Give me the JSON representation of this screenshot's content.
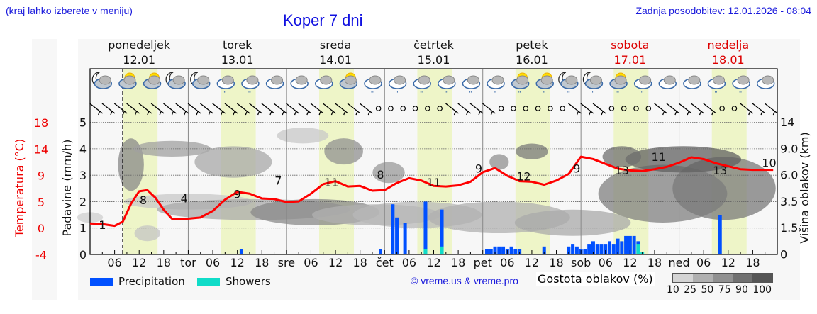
{
  "header": {
    "location_hint": "(kraj lahko izberete v meniju)",
    "title": "Koper 7 dni",
    "last_update": "Zadnja posodobitev: 12.01.2026 - 08:04"
  },
  "days": [
    {
      "name": "ponedeljek",
      "date": "12.01",
      "weekend": false
    },
    {
      "name": "torek",
      "date": "13.01",
      "weekend": false
    },
    {
      "name": "sreda",
      "date": "14.01",
      "weekend": false
    },
    {
      "name": "četrtek",
      "date": "15.01",
      "weekend": false
    },
    {
      "name": "petek",
      "date": "16.01",
      "weekend": false
    },
    {
      "name": "sobota",
      "date": "17.01",
      "weekend": true
    },
    {
      "name": "nedelja",
      "date": "18.01",
      "weekend": true
    }
  ],
  "x_ticks": [
    "06",
    "12",
    "18",
    "tor",
    "06",
    "12",
    "18",
    "sre",
    "06",
    "12",
    "18",
    "čet",
    "06",
    "12",
    "18",
    "pet",
    "06",
    "12",
    "18",
    "sob",
    "06",
    "12",
    "18",
    "ned",
    "06",
    "12",
    "18"
  ],
  "weather_icons": [
    "moon-cloud",
    "sun-cloud",
    "sun-cloud",
    "moon-cloud",
    "moon-cloud",
    "cloud-rain",
    "cloud-rain",
    "cloud",
    "cloud",
    "cloud",
    "sun-cloud",
    "cloud-rain",
    "cloud-rain",
    "cloud-rain",
    "cloud-rain",
    "cloud-rain",
    "cloud-rain",
    "sun-cloud-rain",
    "sun-cloud-rain",
    "moon-cloud-rain",
    "moon-cloud-rain",
    "sun-cloud-rain",
    "cloud-rain",
    "cloud",
    "cloud",
    "cloud-rain",
    "cloud-rain",
    "cloud"
  ],
  "axes": {
    "left_outer_label": "Temperatura (°C)",
    "left_outer_ticks": [
      "18",
      "14",
      "9",
      "5",
      "0",
      "-4"
    ],
    "left_inner_label": "Padavine (mm/h)",
    "left_inner_ticks": [
      "5",
      "4",
      "3",
      "2",
      "1",
      "0"
    ],
    "right_label": "Višina oblakov (km)",
    "right_ticks": [
      "14",
      "9.0",
      "6.0",
      "3.5",
      "1.5",
      "0"
    ]
  },
  "legend": {
    "precipitation": "Precipitation",
    "showers": "Showers",
    "precipitation_color": "#0050ff",
    "showers_color": "#10dcc8",
    "copyright": "© vreme.us & vreme.pro",
    "cloud_density_label": "Gostota oblakov (%)",
    "cloud_density_ticks": "10 25 50 75 90 100",
    "cloud_density_colors": [
      "#d4d4d4",
      "#b0b0b0",
      "#909090",
      "#707070",
      "#555555"
    ]
  },
  "colors": {
    "temperature": "#ff0000",
    "daylight": "#eef5c8",
    "weekend_text": "#dd0000",
    "title_blue": "#1010e0"
  },
  "chart_data": {
    "type": "line",
    "title": "Koper 7 dni",
    "xlabel": "",
    "ylabel": "Temperatura (°C) / Padavine (mm/h)",
    "y2label": "Višina oblakov (km)",
    "hours_from_start": [
      0,
      3,
      6,
      8,
      10,
      12,
      14,
      16,
      18,
      20,
      22,
      24,
      27,
      30,
      33,
      36,
      39,
      42,
      45,
      48,
      51,
      54,
      57,
      60,
      63,
      66,
      69,
      72,
      75,
      78,
      81,
      84,
      87,
      90,
      93,
      96,
      99,
      102,
      105,
      108,
      111,
      114,
      117,
      120,
      123,
      126,
      129,
      132,
      135,
      138,
      141,
      144,
      147,
      150,
      153,
      156,
      159,
      162,
      165,
      167
    ],
    "temperature": [
      1.2,
      1.1,
      0.8,
      1.5,
      4.5,
      6.6,
      6.8,
      5.5,
      3.5,
      2.0,
      2.0,
      2.0,
      2.2,
      3.3,
      5.2,
      6.5,
      6.2,
      5.4,
      5.3,
      4.8,
      4.9,
      6.2,
      7.8,
      8.3,
      7.4,
      7.5,
      6.7,
      6.8,
      8.0,
      8.8,
      8.4,
      7.5,
      7.4,
      7.6,
      8.2,
      9.8,
      10.5,
      9.2,
      8.3,
      8.2,
      7.7,
      8.4,
      9.5,
      12.4,
      12.0,
      11.2,
      10.4,
      10.1,
      10.0,
      10.3,
      10.7,
      11.4,
      12.3,
      12.0,
      11.3,
      10.8,
      10.3,
      10.2,
      10.2,
      10.2
    ],
    "temperature_labels": [
      {
        "hour": 3,
        "value": 1
      },
      {
        "hour": 13,
        "value": 8
      },
      {
        "hour": 23,
        "value": 4
      },
      {
        "hour": 36,
        "value": 9
      },
      {
        "hour": 46,
        "value": 7
      },
      {
        "hour": 59,
        "value": 11
      },
      {
        "hour": 71,
        "value": 8
      },
      {
        "hour": 84,
        "value": 11
      },
      {
        "hour": 95,
        "value": 9
      },
      {
        "hour": 106,
        "value": 12
      },
      {
        "hour": 119,
        "value": 9
      },
      {
        "hour": 130,
        "value": 13
      },
      {
        "hour": 139,
        "value": 11
      },
      {
        "hour": 154,
        "value": 13
      },
      {
        "hour": 166,
        "value": 10
      }
    ],
    "precipitation_mm_h": [
      {
        "hour": 37,
        "value": 0.2
      },
      {
        "hour": 71,
        "value": 0.2
      },
      {
        "hour": 74,
        "value": 1.9
      },
      {
        "hour": 75,
        "value": 1.4
      },
      {
        "hour": 77,
        "value": 1.2
      },
      {
        "hour": 82,
        "value": 2.0
      },
      {
        "hour": 86,
        "value": 1.7
      },
      {
        "hour": 97,
        "value": 0.2
      },
      {
        "hour": 98,
        "value": 0.2
      },
      {
        "hour": 99,
        "value": 0.3
      },
      {
        "hour": 100,
        "value": 0.3
      },
      {
        "hour": 101,
        "value": 0.3
      },
      {
        "hour": 102,
        "value": 0.2
      },
      {
        "hour": 103,
        "value": 0.3
      },
      {
        "hour": 104,
        "value": 0.2
      },
      {
        "hour": 105,
        "value": 0.2
      },
      {
        "hour": 111,
        "value": 0.3
      },
      {
        "hour": 117,
        "value": 0.3
      },
      {
        "hour": 118,
        "value": 0.4
      },
      {
        "hour": 119,
        "value": 0.3
      },
      {
        "hour": 120,
        "value": 0.2
      },
      {
        "hour": 121,
        "value": 0.2
      },
      {
        "hour": 122,
        "value": 0.4
      },
      {
        "hour": 123,
        "value": 0.5
      },
      {
        "hour": 124,
        "value": 0.4
      },
      {
        "hour": 125,
        "value": 0.4
      },
      {
        "hour": 126,
        "value": 0.4
      },
      {
        "hour": 127,
        "value": 0.5
      },
      {
        "hour": 128,
        "value": 0.4
      },
      {
        "hour": 129,
        "value": 0.6
      },
      {
        "hour": 130,
        "value": 0.5
      },
      {
        "hour": 131,
        "value": 0.7
      },
      {
        "hour": 132,
        "value": 0.7
      },
      {
        "hour": 133,
        "value": 0.7
      },
      {
        "hour": 134,
        "value": 0.5
      },
      {
        "hour": 154,
        "value": 1.5
      }
    ],
    "showers_mm_h": [
      {
        "hour": 82,
        "value": 0.2
      },
      {
        "hour": 86,
        "value": 0.3
      },
      {
        "hour": 134,
        "value": 0.4
      },
      {
        "hour": 135,
        "value": 0.1
      }
    ],
    "ylim_precip": [
      0,
      5
    ],
    "y_ticks_temp": [
      -4,
      0,
      5,
      9,
      14,
      18
    ],
    "y_ticks_cloud_km": [
      0,
      1.5,
      3.5,
      6.0,
      9.0,
      14
    ],
    "legend": [
      "Precipitation",
      "Showers"
    ],
    "cloud_density_scale": [
      10,
      25,
      50,
      75,
      90,
      100
    ],
    "current_time_hour": 8
  }
}
